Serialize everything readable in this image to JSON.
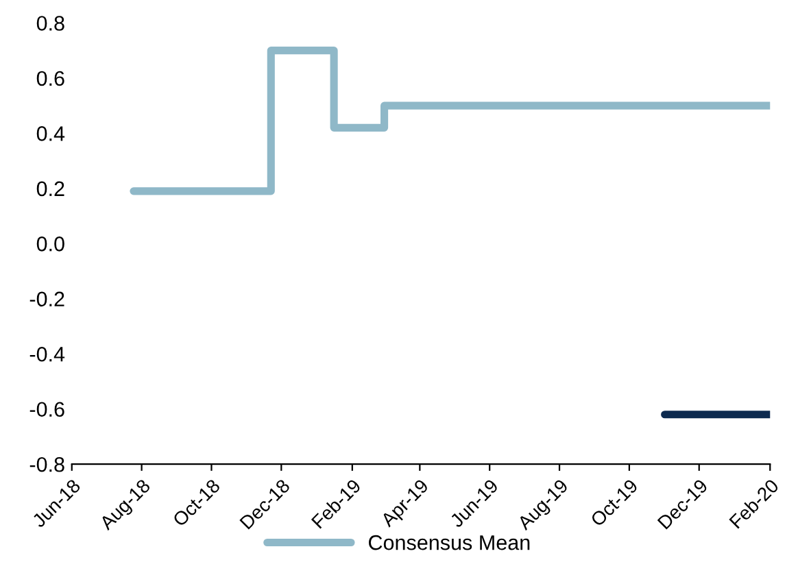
{
  "chart_data": {
    "type": "step",
    "legend": "bottom",
    "grid": false,
    "series": [
      {
        "color": "#0d2a4f",
        "x": [
          "2019-11-01",
          "2020-02-01"
        ],
        "values": [
          -0.62,
          -0.62
        ]
      },
      {
        "name": "Consensus Mean",
        "color": "#8fb8c8",
        "x": [
          "2018-07-25",
          "2018-11-22",
          "2019-01-16",
          "2019-03-01",
          "2020-02-01"
        ],
        "values": [
          0.19,
          0.7,
          0.42,
          0.5,
          0.5
        ]
      }
    ],
    "xlim": [
      "2018-06-01",
      "2020-02-01"
    ],
    "xticks": [
      {
        "value": "2018-06-01",
        "label": "Jun-18"
      },
      {
        "value": "2018-08-01",
        "label": "Aug-18"
      },
      {
        "value": "2018-10-01",
        "label": "Oct-18"
      },
      {
        "value": "2018-12-01",
        "label": "Dec-18"
      },
      {
        "value": "2019-02-01",
        "label": "Feb-19"
      },
      {
        "value": "2019-04-01",
        "label": "Apr-19"
      },
      {
        "value": "2019-06-01",
        "label": "Jun-19"
      },
      {
        "value": "2019-08-01",
        "label": "Aug-19"
      },
      {
        "value": "2019-10-01",
        "label": "Oct-19"
      },
      {
        "value": "2019-12-01",
        "label": "Dec-19"
      },
      {
        "value": "2020-02-01",
        "label": "Feb-20"
      }
    ],
    "ylim": [
      -0.8,
      0.8
    ],
    "yticks": [
      {
        "value": -0.8,
        "label": "-0.8"
      },
      {
        "value": -0.6,
        "label": "-0.6"
      },
      {
        "value": -0.4,
        "label": "-0.4"
      },
      {
        "value": -0.2,
        "label": "-0.2"
      },
      {
        "value": 0,
        "label": "0.0"
      },
      {
        "value": 0.2,
        "label": "0.2"
      },
      {
        "value": 0.4,
        "label": "0.4"
      },
      {
        "value": 0.6,
        "label": "0.6"
      },
      {
        "value": 0.8,
        "label": "0.8"
      }
    ]
  }
}
